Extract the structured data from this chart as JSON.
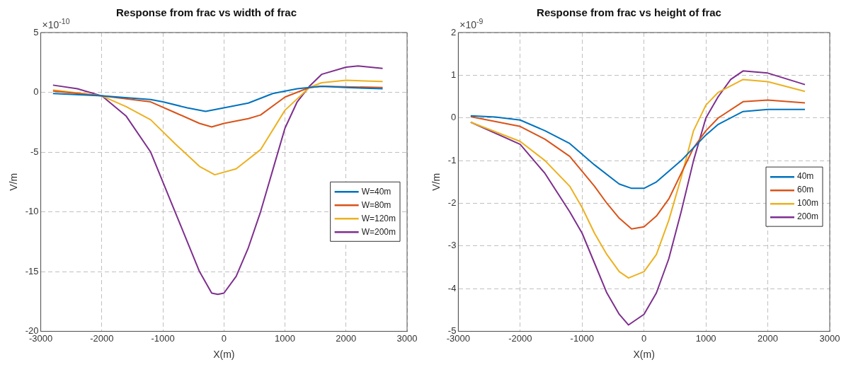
{
  "chart_data": [
    {
      "type": "line",
      "title": "Response from frac vs width of frac",
      "xlabel": "X(m)",
      "ylabel": "V/m",
      "annotations": [
        "×10$^{-10}$"
      ],
      "xlim": [
        -3000,
        3000
      ],
      "xticks": [
        -3000,
        -2000,
        -1000,
        0,
        1000,
        2000,
        3000
      ],
      "ylim": [
        -20,
        5
      ],
      "yticks": [
        -20,
        -15,
        -10,
        -5,
        0,
        5
      ],
      "grid": true,
      "legend": "right",
      "marker": "none",
      "line_style": "solid",
      "series": [
        {
          "name": "W=40m",
          "color": "#0072bd",
          "x": [
            -2800,
            -2000,
            -1200,
            -1000,
            -600,
            -300,
            0,
            400,
            800,
            1200,
            1400,
            1600,
            2000,
            2600
          ],
          "values": [
            -0.1,
            -0.3,
            -0.6,
            -0.8,
            -1.3,
            -1.6,
            -1.3,
            -0.9,
            -0.1,
            0.3,
            0.4,
            0.5,
            0.4,
            0.3
          ]
        },
        {
          "name": "W=80m",
          "color": "#d95319",
          "x": [
            -2800,
            -2000,
            -1200,
            -800,
            -400,
            -200,
            0,
            400,
            600,
            1000,
            1400,
            1600,
            2600
          ],
          "values": [
            0.1,
            -0.3,
            -0.8,
            -1.7,
            -2.6,
            -2.9,
            -2.6,
            -2.2,
            -1.9,
            -0.4,
            0.4,
            0.5,
            0.4
          ]
        },
        {
          "name": "W=120m",
          "color": "#edb120",
          "x": [
            -2800,
            -2000,
            -1600,
            -1200,
            -800,
            -400,
            -150,
            200,
            600,
            1000,
            1400,
            1600,
            2000,
            2600
          ],
          "values": [
            0.2,
            -0.3,
            -1.2,
            -2.3,
            -4.3,
            -6.2,
            -6.9,
            -6.4,
            -4.8,
            -1.5,
            0.4,
            0.8,
            1.0,
            0.9
          ]
        },
        {
          "name": "W=200m",
          "color": "#7e2f8e",
          "x": [
            -2800,
            -2400,
            -2000,
            -1600,
            -1200,
            -1000,
            -800,
            -600,
            -400,
            -200,
            -100,
            0,
            200,
            400,
            600,
            800,
            1000,
            1200,
            1400,
            1600,
            2000,
            2200,
            2600
          ],
          "values": [
            0.6,
            0.3,
            -0.3,
            -2.0,
            -5.0,
            -7.5,
            -10.0,
            -12.5,
            -15.0,
            -16.8,
            -16.9,
            -16.8,
            -15.4,
            -13.0,
            -10.0,
            -6.5,
            -3.0,
            -0.8,
            0.5,
            1.5,
            2.1,
            2.2,
            2.0
          ]
        }
      ]
    },
    {
      "type": "line",
      "title": "Response from frac vs height of frac",
      "xlabel": "X(m)",
      "ylabel": "V/m",
      "annotations": [
        "×10$^{-9}$"
      ],
      "xlim": [
        -3000,
        3000
      ],
      "xticks": [
        -3000,
        -2000,
        -1000,
        0,
        1000,
        2000,
        3000
      ],
      "ylim": [
        -5,
        2
      ],
      "yticks": [
        -5,
        -4,
        -3,
        -2,
        -1,
        0,
        1,
        2
      ],
      "grid": true,
      "legend": "right",
      "marker": "none",
      "line_style": "solid",
      "series": [
        {
          "name": "40m",
          "color": "#0072bd",
          "x": [
            -2800,
            -2400,
            -2000,
            -1600,
            -1200,
            -800,
            -400,
            -200,
            0,
            200,
            600,
            1000,
            1200,
            1600,
            2000,
            2600
          ],
          "values": [
            0.05,
            0.02,
            -0.05,
            -0.3,
            -0.6,
            -1.1,
            -1.55,
            -1.65,
            -1.65,
            -1.5,
            -1.0,
            -0.4,
            -0.15,
            0.15,
            0.2,
            0.2
          ]
        },
        {
          "name": "60m",
          "color": "#d95319",
          "x": [
            -2800,
            -2000,
            -1600,
            -1200,
            -800,
            -600,
            -400,
            -200,
            0,
            200,
            400,
            600,
            800,
            1000,
            1200,
            1600,
            2000,
            2600
          ],
          "values": [
            0.03,
            -0.2,
            -0.5,
            -0.9,
            -1.6,
            -2.0,
            -2.35,
            -2.6,
            -2.55,
            -2.3,
            -1.9,
            -1.3,
            -0.7,
            -0.3,
            0.0,
            0.38,
            0.42,
            0.35
          ]
        },
        {
          "name": "100m",
          "color": "#edb120",
          "x": [
            -2800,
            -2000,
            -1600,
            -1200,
            -1000,
            -800,
            -600,
            -400,
            -250,
            0,
            200,
            400,
            600,
            800,
            1000,
            1200,
            1600,
            2000,
            2600
          ],
          "values": [
            -0.1,
            -0.55,
            -1.0,
            -1.6,
            -2.1,
            -2.7,
            -3.2,
            -3.6,
            -3.75,
            -3.6,
            -3.2,
            -2.4,
            -1.4,
            -0.3,
            0.3,
            0.6,
            0.9,
            0.85,
            0.62
          ]
        },
        {
          "name": "200m",
          "color": "#7e2f8e",
          "x": [
            -2800,
            -2000,
            -1600,
            -1200,
            -1000,
            -800,
            -600,
            -400,
            -250,
            0,
            200,
            400,
            600,
            800,
            1000,
            1200,
            1400,
            1600,
            2000,
            2600
          ],
          "values": [
            -0.1,
            -0.62,
            -1.3,
            -2.2,
            -2.7,
            -3.4,
            -4.1,
            -4.6,
            -4.85,
            -4.6,
            -4.1,
            -3.3,
            -2.2,
            -1.0,
            0.0,
            0.5,
            0.9,
            1.1,
            1.05,
            0.78
          ]
        }
      ]
    }
  ]
}
